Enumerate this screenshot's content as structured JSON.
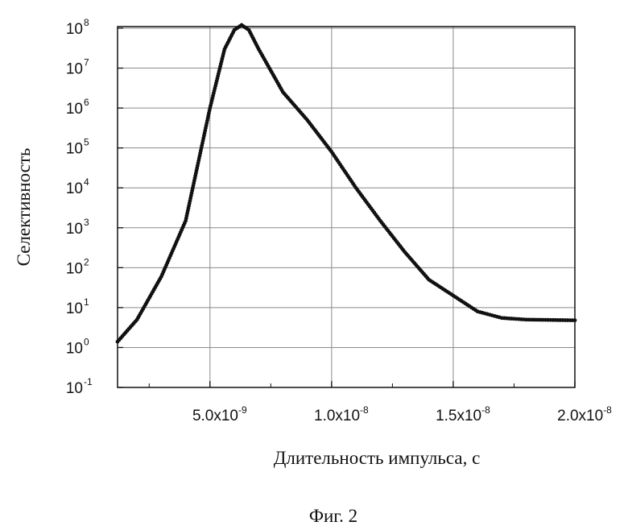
{
  "chart_data": {
    "type": "scatter",
    "title": "",
    "xlabel": "Длительность импульса, с",
    "ylabel": "Селективность",
    "caption": "Фиг. 2",
    "xscale": "linear",
    "yscale": "log",
    "xlim": [
      1.2e-09,
      2e-08
    ],
    "ylim": [
      0.1,
      200000000
    ],
    "grid": true,
    "legend": "none",
    "marker_color": "#111111",
    "x_ticks": [
      {
        "mantissa": "5.0x10",
        "exponent": "-9",
        "value": 5e-09
      },
      {
        "mantissa": "1.0x10",
        "exponent": "-8",
        "value": 1e-08
      },
      {
        "mantissa": "1.5x10",
        "exponent": "-8",
        "value": 1.5e-08
      },
      {
        "mantissa": "2.0x10",
        "exponent": "-8",
        "value": 2e-08
      }
    ],
    "y_ticks": [
      {
        "base": "10",
        "exponent": "-1",
        "value": 0.1
      },
      {
        "base": "10",
        "exponent": "0",
        "value": 1
      },
      {
        "base": "10",
        "exponent": "1",
        "value": 10
      },
      {
        "base": "10",
        "exponent": "2",
        "value": 100
      },
      {
        "base": "10",
        "exponent": "3",
        "value": 1000
      },
      {
        "base": "10",
        "exponent": "4",
        "value": 10000
      },
      {
        "base": "10",
        "exponent": "5",
        "value": 100000
      },
      {
        "base": "10",
        "exponent": "6",
        "value": 1000000
      },
      {
        "base": "10",
        "exponent": "7",
        "value": 10000000
      },
      {
        "base": "10",
        "exponent": "8",
        "value": 100000000
      }
    ],
    "curve_points": [
      {
        "x": 1.2e-09,
        "y": 1.4
      },
      {
        "x": 2e-09,
        "y": 5
      },
      {
        "x": 3e-09,
        "y": 60
      },
      {
        "x": 4e-09,
        "y": 1500
      },
      {
        "x": 5e-09,
        "y": 1000000
      },
      {
        "x": 5.6e-09,
        "y": 30000000
      },
      {
        "x": 6e-09,
        "y": 90000000
      },
      {
        "x": 6.3e-09,
        "y": 120000000
      },
      {
        "x": 6.6e-09,
        "y": 90000000
      },
      {
        "x": 7e-09,
        "y": 30000000
      },
      {
        "x": 8e-09,
        "y": 2500000
      },
      {
        "x": 9e-09,
        "y": 500000
      },
      {
        "x": 1e-08,
        "y": 80000
      },
      {
        "x": 1.1e-08,
        "y": 10000
      },
      {
        "x": 1.2e-08,
        "y": 1500
      },
      {
        "x": 1.3e-08,
        "y": 250
      },
      {
        "x": 1.4e-08,
        "y": 50
      },
      {
        "x": 1.5e-08,
        "y": 20
      },
      {
        "x": 1.6e-08,
        "y": 8
      },
      {
        "x": 1.7e-08,
        "y": 5.5
      },
      {
        "x": 1.8e-08,
        "y": 5
      },
      {
        "x": 1.9e-08,
        "y": 4.9
      },
      {
        "x": 2e-08,
        "y": 4.8
      }
    ]
  }
}
